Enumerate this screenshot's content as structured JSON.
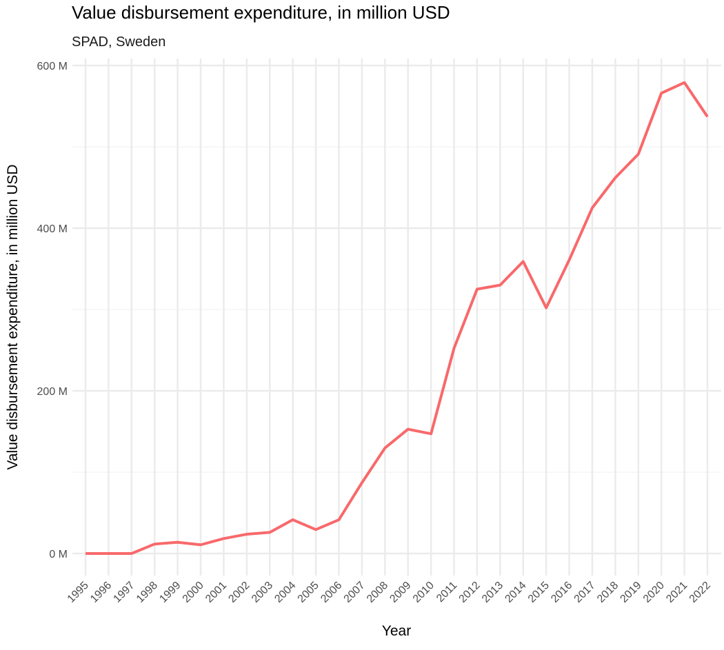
{
  "chart_data": {
    "type": "line",
    "title": "Value disbursement expenditure, in million USD",
    "subtitle": "SPAD, Sweden",
    "xlabel": "Year",
    "ylabel": "Value disbursement expenditure, in million USD",
    "x": [
      1995,
      1996,
      1997,
      1998,
      1999,
      2000,
      2001,
      2002,
      2003,
      2004,
      2005,
      2006,
      2007,
      2008,
      2009,
      2010,
      2011,
      2012,
      2013,
      2014,
      2015,
      2016,
      2017,
      2018,
      2019,
      2020,
      2021,
      2022
    ],
    "series": [
      {
        "values": [
          0,
          0,
          0,
          11.6,
          13.8,
          10.7,
          18.4,
          23.7,
          26,
          41.5,
          29.4,
          41.5,
          87,
          129.7,
          152.8,
          147.2,
          252.5,
          325,
          330,
          359,
          302,
          361,
          425,
          462,
          491,
          566,
          579,
          537
        ],
        "color": "#F8696B"
      }
    ],
    "yticks": [
      0,
      200,
      400,
      600
    ],
    "ytick_labels": [
      "0 M",
      "200 M",
      "400 M",
      "600 M"
    ],
    "xtick_labels": [
      "1995",
      "1996",
      "1997",
      "1998",
      "1999",
      "2000",
      "2001",
      "2002",
      "2003",
      "2004",
      "2005",
      "2006",
      "2007",
      "2008",
      "2009",
      "2010",
      "2011",
      "2012",
      "2013",
      "2014",
      "2015",
      "2016",
      "2017",
      "2018",
      "2019",
      "2020",
      "2021",
      "2022"
    ],
    "ylim": [
      -27,
      615
    ],
    "grid": true,
    "legend": "none"
  }
}
